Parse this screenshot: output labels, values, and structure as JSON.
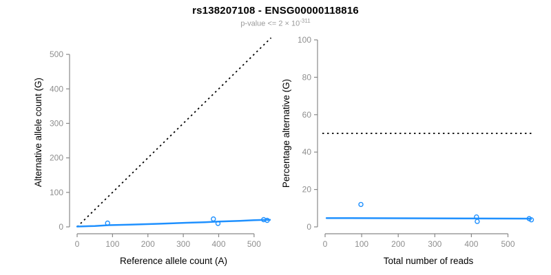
{
  "header": {
    "title": "rs138207108 - ENSG00000118816",
    "subtitle_prefix": "p-value <= 2 × 10",
    "subtitle_exponent": "-311",
    "subtitle_full": "p-value <= 2×10^-311"
  },
  "colors": {
    "accent_blue": "#1E90FF",
    "axis_gray": "#888888",
    "tick_label_gray": "#8e8e8e",
    "axis_title_black": "#000000",
    "reference_black": "#000000",
    "title_black": "#000000",
    "subtitle_gray": "#9a9a9a",
    "background": "#ffffff"
  },
  "chart_data": [
    {
      "type": "scatter",
      "panel": "left",
      "title": "rs138207108 - ENSG00000118816",
      "subtitle": "p-value <= 2×10^-311",
      "xlabel": "Reference allele count (A)",
      "ylabel": "Alternative allele count (G)",
      "xlim": [
        0,
        545
      ],
      "ylim": [
        0,
        548
      ],
      "xticks": [
        0,
        100,
        200,
        300,
        400,
        500
      ],
      "yticks": [
        0,
        100,
        200,
        300,
        400,
        500
      ],
      "grid": false,
      "legend": false,
      "points": [
        [
          86,
          11
        ],
        [
          385,
          23
        ],
        [
          398,
          10
        ],
        [
          527,
          21
        ],
        [
          537,
          19
        ]
      ],
      "trend_line": [
        [
          0,
          1
        ],
        [
          50,
          2.5
        ],
        [
          90,
          5
        ],
        [
          150,
          6.5
        ],
        [
          230,
          9
        ],
        [
          310,
          12
        ],
        [
          360,
          13.5
        ],
        [
          400,
          15.5
        ],
        [
          460,
          17.5
        ],
        [
          500,
          19.5
        ],
        [
          545,
          20.5
        ]
      ],
      "reference_line": {
        "style": "dotted",
        "kind": "identity",
        "from": [
          0,
          0
        ],
        "to": [
          548,
          548
        ]
      }
    },
    {
      "type": "scatter",
      "panel": "right",
      "xlabel": "Total number of reads",
      "ylabel": "Percentage alternative (G)",
      "xlim": [
        0,
        565
      ],
      "ylim": [
        0,
        100
      ],
      "xticks": [
        0,
        100,
        200,
        300,
        400,
        500
      ],
      "yticks": [
        0,
        20,
        40,
        60,
        80,
        100
      ],
      "grid": false,
      "legend": false,
      "points": [
        [
          98,
          12
        ],
        [
          414,
          5.3
        ],
        [
          416,
          2.9
        ],
        [
          558,
          4.4
        ],
        [
          564,
          3.8
        ]
      ],
      "trend_line": [
        [
          4,
          4.7
        ],
        [
          563,
          4.4
        ]
      ],
      "reference_line": {
        "style": "dotted",
        "kind": "horizontal",
        "y": 50
      }
    }
  ]
}
